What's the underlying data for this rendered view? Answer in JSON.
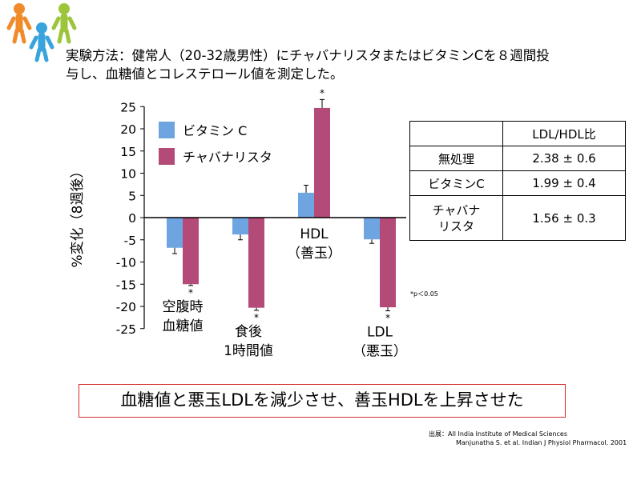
{
  "method_text": [
    "実験方法：健常人（20-32歳男性）にチャバナリスタまたはビタミンCを８週間投",
    "与し、血糖値とコレステロール値を測定した。"
  ],
  "chart_data": {
    "type": "bar",
    "ylabel": "%変化（8週後）",
    "ylim": [
      -25,
      25
    ],
    "yticks": [
      25,
      20,
      15,
      10,
      5,
      0,
      -5,
      -10,
      -15,
      -20,
      -25
    ],
    "categories": [
      [
        "空腹時",
        "血糖値"
      ],
      [
        "食後",
        "1時間値"
      ],
      [
        "HDL",
        "（善玉）"
      ],
      [
        "LDL",
        "（悪玉）"
      ]
    ],
    "series": [
      {
        "name": "ビタミン C",
        "color": "#6ea5e0",
        "values": [
          -6.8,
          -3.8,
          5.6,
          -4.9
        ],
        "errors": [
          1.3,
          1.2,
          1.7,
          0.9
        ],
        "sig": [
          false,
          false,
          false,
          false
        ]
      },
      {
        "name": "チャバナリスタ",
        "color": "#b34a78",
        "values": [
          -15.0,
          -20.3,
          24.7,
          -20.2
        ],
        "errors": [
          0.3,
          0.6,
          1.9,
          0.8
        ],
        "sig": [
          true,
          true,
          true,
          true
        ]
      }
    ],
    "sig_marker": "*",
    "sig_note": "*p＜0.05"
  },
  "ratio_table": {
    "header": [
      "",
      "LDL/HDL比"
    ],
    "rows": [
      {
        "label": "無処理",
        "value": "2.38 ± 0.6"
      },
      {
        "label": "ビタミンC",
        "value": "1.99 ± 0.4"
      },
      {
        "label_lines": [
          "チャバナ",
          "リスタ"
        ],
        "value": "1.56 ± 0.3"
      }
    ]
  },
  "conclusion": "血糖値と悪玉LDLを減少させ、善玉HDLを上昇させた",
  "source": {
    "line1": "出展：All India Institute of Medical Sciences",
    "line2": "Manjunatha S. et al. Indian J Physiol Pharmacol. 2001"
  },
  "colors": {
    "logo_orange": "#f08a2a",
    "logo_blue": "#39a3dd",
    "logo_green": "#9cc53b",
    "conclusion_border": "#d62c2c"
  }
}
